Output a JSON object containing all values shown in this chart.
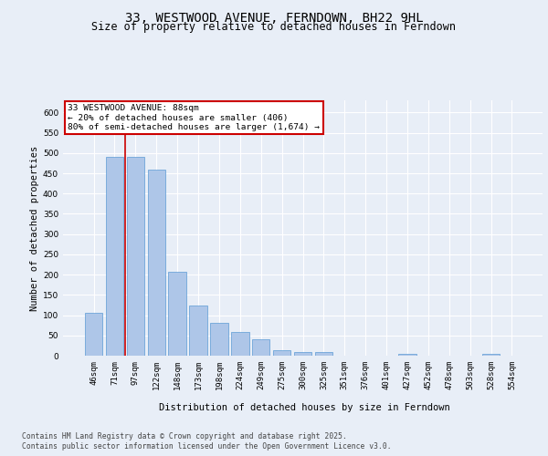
{
  "title": "33, WESTWOOD AVENUE, FERNDOWN, BH22 9HL",
  "subtitle": "Size of property relative to detached houses in Ferndown",
  "xlabel": "Distribution of detached houses by size in Ferndown",
  "ylabel": "Number of detached properties",
  "categories": [
    "46sqm",
    "71sqm",
    "97sqm",
    "122sqm",
    "148sqm",
    "173sqm",
    "198sqm",
    "224sqm",
    "249sqm",
    "275sqm",
    "300sqm",
    "325sqm",
    "351sqm",
    "376sqm",
    "401sqm",
    "427sqm",
    "452sqm",
    "478sqm",
    "503sqm",
    "528sqm",
    "554sqm"
  ],
  "values": [
    105,
    490,
    490,
    458,
    207,
    123,
    82,
    58,
    40,
    13,
    8,
    10,
    0,
    0,
    0,
    5,
    0,
    0,
    0,
    5,
    0
  ],
  "bar_color": "#aec6e8",
  "bar_edgecolor": "#5b9bd5",
  "vline_x": 1.5,
  "vline_color": "#cc0000",
  "annotation_title": "33 WESTWOOD AVENUE: 88sqm",
  "annotation_line1": "← 20% of detached houses are smaller (406)",
  "annotation_line2": "80% of semi-detached houses are larger (1,674) →",
  "annotation_box_color": "#cc0000",
  "ylim": [
    0,
    630
  ],
  "yticks": [
    0,
    50,
    100,
    150,
    200,
    250,
    300,
    350,
    400,
    450,
    500,
    550,
    600
  ],
  "footer_line1": "Contains HM Land Registry data © Crown copyright and database right 2025.",
  "footer_line2": "Contains public sector information licensed under the Open Government Licence v3.0.",
  "background_color": "#e8eef7",
  "plot_bg_color": "#e8eef7",
  "grid_color": "#ffffff",
  "title_fontsize": 10,
  "subtitle_fontsize": 8.5,
  "axis_label_fontsize": 7.5,
  "tick_fontsize": 6.5,
  "annotation_fontsize": 6.8,
  "footer_fontsize": 5.8
}
